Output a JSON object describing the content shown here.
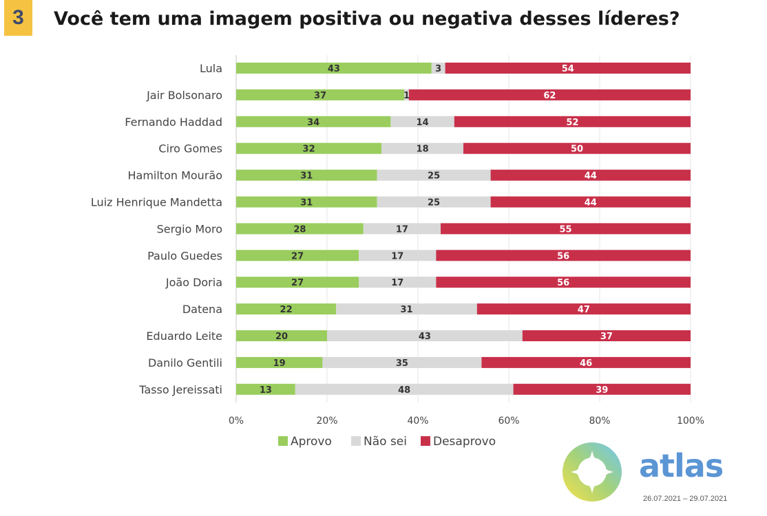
{
  "badge": "3",
  "chart_data": {
    "type": "bar",
    "stacked": true,
    "orientation": "horizontal",
    "title": "Você tem uma imagem positiva ou negativa desses líderes?",
    "categories": [
      "Lula",
      "Jair Bolsonaro",
      "Fernando Haddad",
      "Ciro Gomes",
      "Hamilton Mourão",
      "Luiz Henrique Mandetta",
      "Sergio Moro",
      "Paulo Guedes",
      "João Doria",
      "Datena",
      "Eduardo Leite",
      "Danilo Gentili",
      "Tasso Jereissati"
    ],
    "series": [
      {
        "name": "Aprovo",
        "color": "#9acd5e",
        "label_color": "#333333",
        "values": [
          43,
          37,
          34,
          32,
          31,
          31,
          28,
          27,
          27,
          22,
          20,
          19,
          13
        ]
      },
      {
        "name": "Não sei",
        "color": "#d9d9d9",
        "label_color": "#333333",
        "values": [
          3,
          1,
          14,
          18,
          25,
          25,
          17,
          17,
          17,
          31,
          43,
          35,
          48
        ]
      },
      {
        "name": "Desaprovo",
        "color": "#c8304a",
        "label_color": "#ffffff",
        "values": [
          54,
          62,
          52,
          50,
          44,
          44,
          55,
          56,
          56,
          47,
          37,
          46,
          39
        ]
      }
    ],
    "xlim": [
      0,
      100
    ],
    "xticks": [
      "0%",
      "20%",
      "40%",
      "60%",
      "80%",
      "100%"
    ],
    "grid": true,
    "legend_position": "bottom"
  },
  "logo": {
    "text": "atlas"
  },
  "date_range": "26.07.2021 – 29.07.2021"
}
